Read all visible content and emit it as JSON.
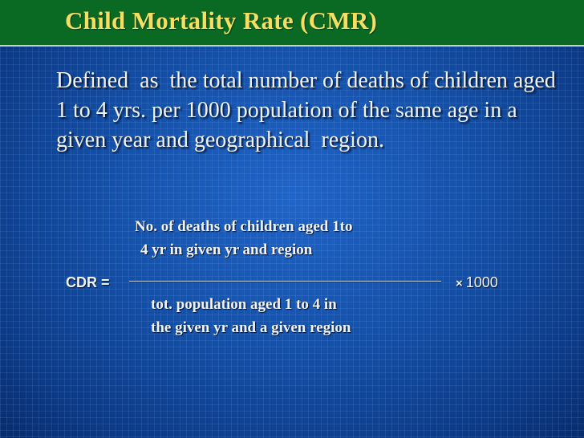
{
  "slide": {
    "title": "Child Mortality Rate (CMR)",
    "definition": "Defined  as  the total number of deaths of children aged 1 to 4 yrs. per 1000 population of the same age in a given year and geographical  region.",
    "formula": {
      "lhs": "CDR =",
      "numerator_line1": "No. of deaths of children aged 1to",
      "numerator_line2": "4 yr in given yr and region",
      "denominator_line1": "tot. population aged 1 to 4 in",
      "denominator_line2": "the given yr and a given region",
      "multiplier_symbol": "×",
      "multiplier_value": "1000"
    }
  },
  "colors": {
    "background": "#1450a8",
    "title_bar": "#0a6a24",
    "title_text": "#f5df62",
    "body_text": "#f2f2f2"
  }
}
